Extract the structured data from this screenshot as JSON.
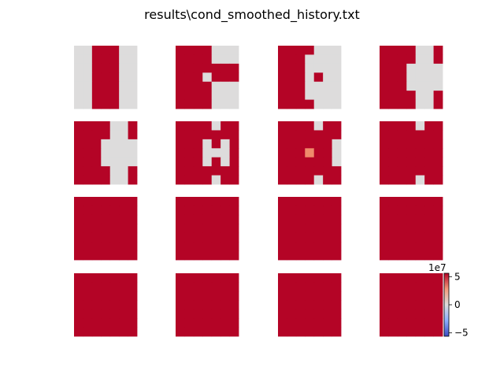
{
  "figure": {
    "title": "results\\cond_smoothed_history.txt"
  },
  "colorbar": {
    "offset_text": "1e7",
    "ticks": [
      5,
      0,
      -5
    ],
    "tick_labels": [
      "5",
      "0",
      "−5"
    ],
    "range": [
      -5.6,
      5.6
    ],
    "colormap": "coolwarm"
  },
  "colors": {
    "red": "#b40426",
    "gray": "#dddcdc",
    "salmon": "#ef8b6b"
  },
  "chart_data": {
    "type": "heatmap",
    "title": "results\\cond_smoothed_history.txt",
    "grid_shape": [
      4,
      4
    ],
    "cell_grid": [
      7,
      7
    ],
    "legend": "colorbar right of last panel",
    "value_key": {
      "r": "high (red)",
      "g": "mid (near 0, gray)",
      "s": "moderately high (salmon)"
    },
    "panels": [
      [
        "ggrrrgg",
        "ggrrrgg",
        "ggrrrgg",
        "ggrrrgg",
        "ggrrrgg",
        "ggrrrgg",
        "ggrrrgg"
      ],
      [
        "rrrrggg",
        "rrrrggg",
        "rrrrrrr",
        "rrrgrrr",
        "rrrrggg",
        "rrrrggg",
        "rrrrggg"
      ],
      [
        "rrrrggg",
        "rrrgggg",
        "rrrgggg",
        "rrrgrgg",
        "rrrgggg",
        "rrrgggg",
        "rrrrggg"
      ],
      [
        "rrrrggr",
        "rrrrggr",
        "rrrgggg",
        "rrrgggg",
        "rrrgggg",
        "rrrrggr",
        "rrrrggr"
      ],
      [
        "rrrrggr",
        "rrrrggr",
        "rrrgggg",
        "rrrgggg",
        "rrrgggg",
        "rrrrggr",
        "rrrrggr"
      ],
      [
        "rrrrgrr",
        "rrrrrrr",
        "rrrgrgr",
        "rrrgggr",
        "rrrgrgr",
        "rrrrrrr",
        "rrrrgrr"
      ],
      [
        "rrrrgrr",
        "rrrrrrr",
        "rrrrrrg",
        "rrrsrrg",
        "rrrrrrg",
        "rrrrrrr",
        "rrrrgrr"
      ],
      [
        "rrrrgrr",
        "rrrrrrr",
        "rrrrrrr",
        "rrrrrrr",
        "rrrrrrr",
        "rrrrrrr",
        "rrrrgrr"
      ],
      [
        "rrrrrrr",
        "rrrrrrr",
        "rrrrrrr",
        "rrrrrrr",
        "rrrrrrr",
        "rrrrrrr",
        "rrrrrrr"
      ],
      [
        "rrrrrrr",
        "rrrrrrr",
        "rrrrrrr",
        "rrrrrrr",
        "rrrrrrr",
        "rrrrrrr",
        "rrrrrrr"
      ],
      [
        "rrrrrrr",
        "rrrrrrr",
        "rrrrrrr",
        "rrrrrrr",
        "rrrrrrr",
        "rrrrrrr",
        "rrrrrrr"
      ],
      [
        "rrrrrrr",
        "rrrrrrr",
        "rrrrrrr",
        "rrrrrrr",
        "rrrrrrr",
        "rrrrrrr",
        "rrrrrrr"
      ],
      [
        "rrrrrrr",
        "rrrrrrr",
        "rrrrrrr",
        "rrrrrrr",
        "rrrrrrr",
        "rrrrrrr",
        "rrrrrrr"
      ],
      [
        "rrrrrrr",
        "rrrrrrr",
        "rrrrrrr",
        "rrrrrrr",
        "rrrrrrr",
        "rrrrrrr",
        "rrrrrrr"
      ],
      [
        "rrrrrrr",
        "rrrrrrr",
        "rrrrrrr",
        "rrrrrrr",
        "rrrrrrr",
        "rrrrrrr",
        "rrrrrrr"
      ],
      [
        "rrrrrrr",
        "rrrrrrr",
        "rrrrrrr",
        "rrrrrrr",
        "rrrrrrr",
        "rrrrrrr",
        "rrrrrrr"
      ]
    ]
  }
}
